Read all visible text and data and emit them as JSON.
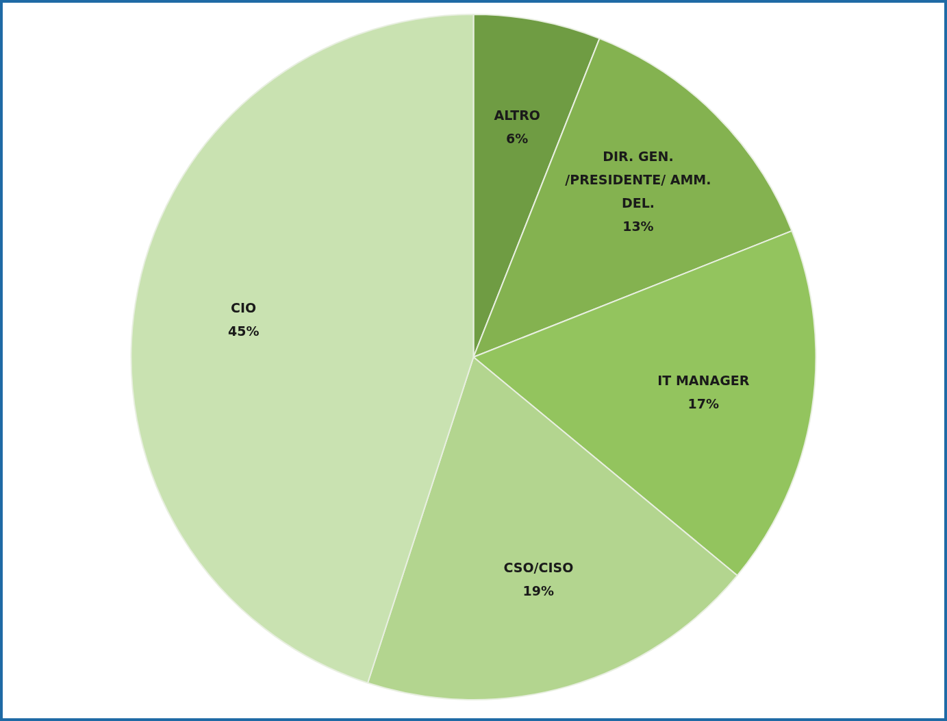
{
  "chart_data": {
    "type": "pie",
    "categories": [
      "ALTRO",
      "DIR. GEN. /PRESIDENTE/ AMM. DEL.",
      "IT MANAGER",
      "CSO/CISO",
      "CIO"
    ],
    "values": [
      6,
      13,
      17,
      19,
      45
    ],
    "value_labels": [
      "6%",
      "13%",
      "17%",
      "19%",
      "45%"
    ],
    "colors": [
      "#6f9c43",
      "#84b250",
      "#93c45e",
      "#b3d58f",
      "#c9e2b1"
    ]
  }
}
